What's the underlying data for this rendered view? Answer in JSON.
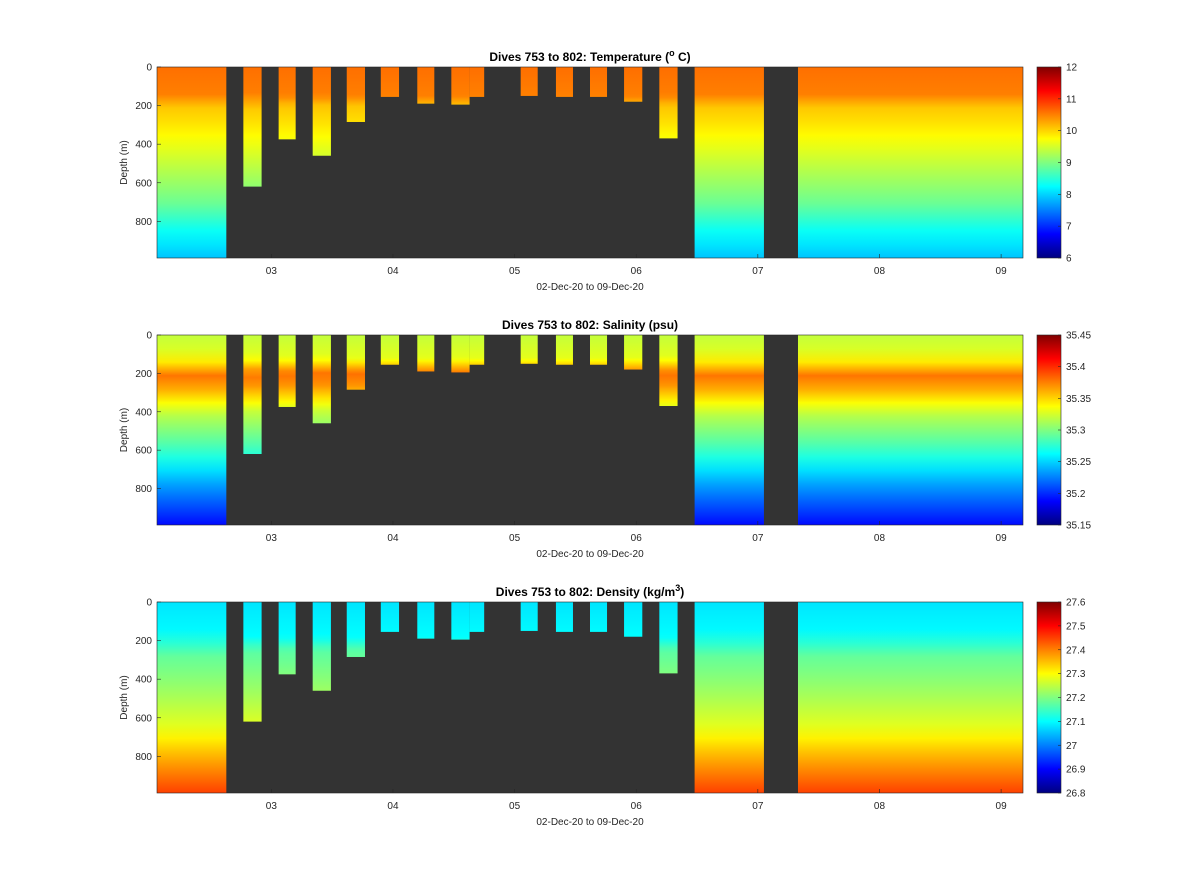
{
  "figure_title": "",
  "colors": {
    "background": "#333333",
    "axis": "#262626",
    "page": "#ffffff"
  },
  "chart_data": [
    {
      "type": "heatmap",
      "title_prefix": "Dives 753 to 802: Temperature (",
      "title_sup": "o",
      "title_suffix": " C)",
      "xlabel": "02-Dec-20 to 09-Dec-20",
      "ylabel": "Depth (m)",
      "x_ticks": [
        "03",
        "04",
        "05",
        "06",
        "07",
        "08",
        "09"
      ],
      "x_tick_values": [
        3,
        4,
        5,
        6,
        7,
        8,
        9
      ],
      "xlim": [
        2.06,
        9.18
      ],
      "y_ticks": [
        "0",
        "200",
        "400",
        "600",
        "800"
      ],
      "y_tick_values": [
        0,
        200,
        400,
        600,
        800
      ],
      "ylim": [
        990,
        0
      ],
      "colorbar_ticks": [
        "6",
        "7",
        "8",
        "9",
        "10",
        "11",
        "12"
      ],
      "clim": [
        6,
        12
      ],
      "colormap": "jet",
      "no_data_color": "#333333",
      "dives": [
        {
          "start": 2.06,
          "end": 2.63,
          "max_depth": 990
        },
        {
          "start": 2.77,
          "end": 2.92,
          "max_depth": 620
        },
        {
          "start": 3.06,
          "end": 3.2,
          "max_depth": 375
        },
        {
          "start": 3.34,
          "end": 3.49,
          "max_depth": 460
        },
        {
          "start": 3.62,
          "end": 3.77,
          "max_depth": 285
        },
        {
          "start": 3.9,
          "end": 4.05,
          "max_depth": 155
        },
        {
          "start": 4.2,
          "end": 4.34,
          "max_depth": 190
        },
        {
          "start": 4.48,
          "end": 4.63,
          "max_depth": 195
        },
        {
          "start": 4.63,
          "end": 4.75,
          "max_depth": 155
        },
        {
          "start": 5.05,
          "end": 5.19,
          "max_depth": 150
        },
        {
          "start": 5.34,
          "end": 5.48,
          "max_depth": 155
        },
        {
          "start": 5.62,
          "end": 5.76,
          "max_depth": 155
        },
        {
          "start": 5.9,
          "end": 6.05,
          "max_depth": 180
        },
        {
          "start": 6.19,
          "end": 6.34,
          "max_depth": 370
        },
        {
          "start": 6.48,
          "end": 7.05,
          "max_depth": 990
        },
        {
          "start": 7.33,
          "end": 9.18,
          "max_depth": 990
        }
      ],
      "profile": [
        {
          "depth": 0,
          "value": 10.6
        },
        {
          "depth": 150,
          "value": 10.5
        },
        {
          "depth": 200,
          "value": 10.1
        },
        {
          "depth": 300,
          "value": 9.9
        },
        {
          "depth": 500,
          "value": 9.4
        },
        {
          "depth": 700,
          "value": 8.9
        },
        {
          "depth": 850,
          "value": 8.3
        },
        {
          "depth": 990,
          "value": 7.9
        }
      ]
    },
    {
      "type": "heatmap",
      "title_prefix": "Dives 753 to 802: Salinity (psu)",
      "title_sup": "",
      "title_suffix": "",
      "xlabel": "02-Dec-20 to 09-Dec-20",
      "ylabel": "Depth (m)",
      "x_ticks": [
        "03",
        "04",
        "05",
        "06",
        "07",
        "08",
        "09"
      ],
      "x_tick_values": [
        3,
        4,
        5,
        6,
        7,
        8,
        9
      ],
      "xlim": [
        2.06,
        9.18
      ],
      "y_ticks": [
        "0",
        "200",
        "400",
        "600",
        "800"
      ],
      "y_tick_values": [
        0,
        200,
        400,
        600,
        800
      ],
      "ylim": [
        990,
        0
      ],
      "colorbar_ticks": [
        "35.15",
        "35.2",
        "35.25",
        "35.3",
        "35.35",
        "35.4",
        "35.45"
      ],
      "clim": [
        35.15,
        35.45
      ],
      "colormap": "jet",
      "no_data_color": "#333333",
      "dives": [
        {
          "start": 2.06,
          "end": 2.63,
          "max_depth": 990
        },
        {
          "start": 2.77,
          "end": 2.92,
          "max_depth": 620
        },
        {
          "start": 3.06,
          "end": 3.2,
          "max_depth": 375
        },
        {
          "start": 3.34,
          "end": 3.49,
          "max_depth": 460
        },
        {
          "start": 3.62,
          "end": 3.77,
          "max_depth": 285
        },
        {
          "start": 3.9,
          "end": 4.05,
          "max_depth": 155
        },
        {
          "start": 4.2,
          "end": 4.34,
          "max_depth": 190
        },
        {
          "start": 4.48,
          "end": 4.63,
          "max_depth": 195
        },
        {
          "start": 4.63,
          "end": 4.75,
          "max_depth": 155
        },
        {
          "start": 5.05,
          "end": 5.19,
          "max_depth": 150
        },
        {
          "start": 5.34,
          "end": 5.48,
          "max_depth": 155
        },
        {
          "start": 5.62,
          "end": 5.76,
          "max_depth": 155
        },
        {
          "start": 5.9,
          "end": 6.05,
          "max_depth": 180
        },
        {
          "start": 6.19,
          "end": 6.34,
          "max_depth": 370
        },
        {
          "start": 6.48,
          "end": 7.05,
          "max_depth": 990
        },
        {
          "start": 7.33,
          "end": 9.18,
          "max_depth": 990
        }
      ],
      "profile": [
        {
          "depth": 0,
          "value": 35.32
        },
        {
          "depth": 120,
          "value": 35.33
        },
        {
          "depth": 200,
          "value": 35.38
        },
        {
          "depth": 260,
          "value": 35.37
        },
        {
          "depth": 400,
          "value": 35.32
        },
        {
          "depth": 600,
          "value": 35.28
        },
        {
          "depth": 800,
          "value": 35.23
        },
        {
          "depth": 990,
          "value": 35.19
        }
      ]
    },
    {
      "type": "heatmap",
      "title_prefix": "Dives 753 to 802: Density (kg/m",
      "title_sup": "3",
      "title_suffix": ")",
      "xlabel": "02-Dec-20 to 09-Dec-20",
      "ylabel": "Depth (m)",
      "x_ticks": [
        "03",
        "04",
        "05",
        "06",
        "07",
        "08",
        "09"
      ],
      "x_tick_values": [
        3,
        4,
        5,
        6,
        7,
        8,
        9
      ],
      "xlim": [
        2.06,
        9.18
      ],
      "y_ticks": [
        "0",
        "200",
        "400",
        "600",
        "800"
      ],
      "y_tick_values": [
        0,
        200,
        400,
        600,
        800
      ],
      "ylim": [
        990,
        0
      ],
      "colorbar_ticks": [
        "26.8",
        "26.9",
        "27",
        "27.1",
        "27.2",
        "27.3",
        "27.4",
        "27.5",
        "27.6"
      ],
      "clim": [
        26.8,
        27.6
      ],
      "colormap": "jet",
      "no_data_color": "#333333",
      "dives": [
        {
          "start": 2.06,
          "end": 2.63,
          "max_depth": 990
        },
        {
          "start": 2.77,
          "end": 2.92,
          "max_depth": 620
        },
        {
          "start": 3.06,
          "end": 3.2,
          "max_depth": 375
        },
        {
          "start": 3.34,
          "end": 3.49,
          "max_depth": 460
        },
        {
          "start": 3.62,
          "end": 3.77,
          "max_depth": 285
        },
        {
          "start": 3.9,
          "end": 4.05,
          "max_depth": 155
        },
        {
          "start": 4.2,
          "end": 4.34,
          "max_depth": 190
        },
        {
          "start": 4.48,
          "end": 4.63,
          "max_depth": 195
        },
        {
          "start": 4.63,
          "end": 4.75,
          "max_depth": 155
        },
        {
          "start": 5.05,
          "end": 5.19,
          "max_depth": 150
        },
        {
          "start": 5.34,
          "end": 5.48,
          "max_depth": 155
        },
        {
          "start": 5.62,
          "end": 5.76,
          "max_depth": 155
        },
        {
          "start": 5.9,
          "end": 6.05,
          "max_depth": 180
        },
        {
          "start": 6.19,
          "end": 6.34,
          "max_depth": 370
        },
        {
          "start": 6.48,
          "end": 7.05,
          "max_depth": 990
        },
        {
          "start": 7.33,
          "end": 9.18,
          "max_depth": 990
        }
      ],
      "profile": [
        {
          "depth": 0,
          "value": 27.08
        },
        {
          "depth": 180,
          "value": 27.1
        },
        {
          "depth": 250,
          "value": 27.17
        },
        {
          "depth": 450,
          "value": 27.22
        },
        {
          "depth": 650,
          "value": 27.28
        },
        {
          "depth": 800,
          "value": 27.36
        },
        {
          "depth": 990,
          "value": 27.45
        }
      ]
    }
  ]
}
